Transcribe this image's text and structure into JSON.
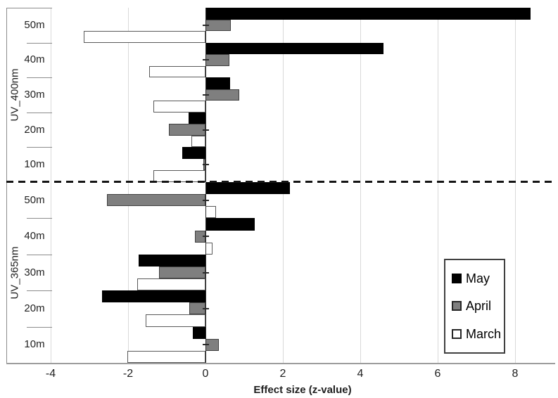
{
  "chart_data": {
    "type": "bar",
    "orientation": "horizontal",
    "xlabel": "Effect size (z-value)",
    "x_ticks": [
      -4,
      -2,
      0,
      2,
      4,
      6,
      8
    ],
    "xlim": [
      -4,
      8.96
    ],
    "grid": true,
    "group_separator": "dashed-line",
    "legend_position": "right-lower",
    "legend": [
      {
        "label": "May",
        "fill": "#000000",
        "border": "#000000"
      },
      {
        "label": "April",
        "fill": "#7f7f7f",
        "border": "#404040"
      },
      {
        "label": "March",
        "fill": "#ffffff",
        "border": "#595959"
      }
    ],
    "groups": [
      {
        "label": "UV_400nm",
        "categories": [
          "50m",
          "40m",
          "30m",
          "20m",
          "10m"
        ],
        "series": [
          {
            "name": "May",
            "values": [
              8.4,
              4.6,
              0.63,
              -0.43,
              -0.6
            ]
          },
          {
            "name": "April",
            "values": [
              0.65,
              0.62,
              0.88,
              -0.95,
              -0.05
            ]
          },
          {
            "name": "March",
            "values": [
              -3.15,
              -1.45,
              -1.35,
              -0.36,
              -1.35
            ]
          }
        ]
      },
      {
        "label": "UV_365nm",
        "categories": [
          "50m",
          "40m",
          "30m",
          "20m",
          "10m"
        ],
        "series": [
          {
            "name": "May",
            "values": [
              2.18,
              1.28,
              -1.73,
              -2.67,
              -0.32
            ]
          },
          {
            "name": "April",
            "values": [
              -2.55,
              -0.27,
              -1.2,
              -0.42,
              0.35
            ]
          },
          {
            "name": "March",
            "values": [
              0.28,
              0.19,
              -1.76,
              -1.55,
              -2.01
            ]
          }
        ]
      }
    ]
  },
  "colors": {
    "grid": "#d9d9d9",
    "zero_line": "#2b2b2b",
    "axis_line": "#9d9d9d",
    "label_lines": "#8c8c8c",
    "dash_line": "#141414",
    "text": "#1f1f1f",
    "background": "#ffffff"
  }
}
